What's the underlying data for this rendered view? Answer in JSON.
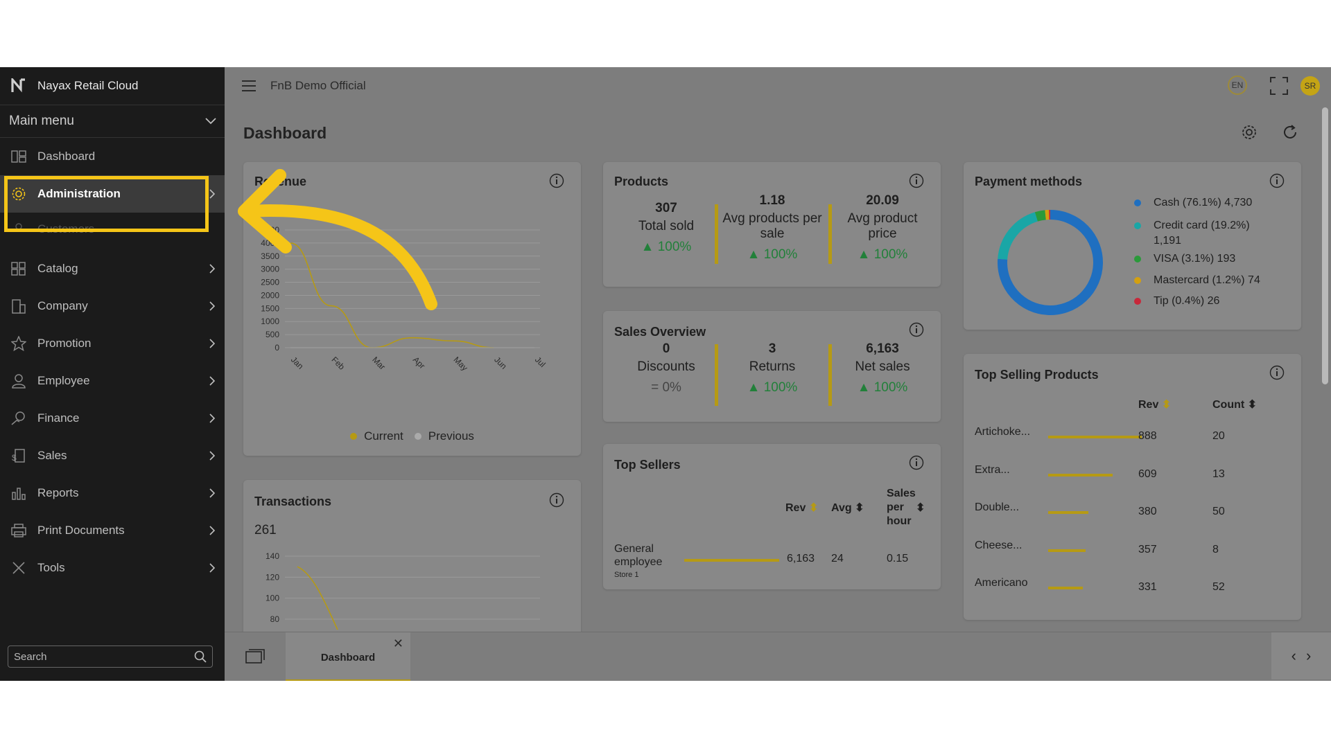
{
  "app": {
    "brand": "Nayax Retail Cloud",
    "store": "FnB Demo Official",
    "lang": "EN",
    "avatar": "SR"
  },
  "sidebar": {
    "main_menu": "Main menu",
    "items": [
      {
        "label": "Dashboard",
        "icon": "dashboard-icon"
      },
      {
        "label": "Administration",
        "icon": "admin-gear-icon"
      },
      {
        "label": "Customers",
        "icon": "customers-icon"
      },
      {
        "label": "Catalog",
        "icon": "catalog-icon"
      },
      {
        "label": "Company",
        "icon": "company-icon"
      },
      {
        "label": "Promotion",
        "icon": "star-icon"
      },
      {
        "label": "Employee",
        "icon": "employee-icon"
      },
      {
        "label": "Finance",
        "icon": "finance-icon"
      },
      {
        "label": "Sales",
        "icon": "sales-icon"
      },
      {
        "label": "Reports",
        "icon": "reports-icon"
      },
      {
        "label": "Print Documents",
        "icon": "printer-icon"
      },
      {
        "label": "Tools",
        "icon": "tools-icon"
      }
    ],
    "search_placeholder": "Search"
  },
  "dashboard": {
    "title": "Dashboard",
    "revenue": {
      "title": "Revenue",
      "legend_current": "Current",
      "legend_previous": "Previous",
      "chart_data": {
        "type": "line",
        "title": "Revenue",
        "categories": [
          "Jan",
          "Feb",
          "Mar",
          "Apr",
          "May",
          "Jun",
          "Jul"
        ],
        "series": [
          {
            "name": "Current",
            "values": [
              4000,
              1600,
              0,
              380,
              260,
              0,
              null
            ]
          },
          {
            "name": "Previous",
            "values": [
              0,
              0,
              0,
              0,
              0,
              0,
              0
            ]
          }
        ],
        "yticks": [
          0,
          500,
          1000,
          1500,
          2000,
          2500,
          3000,
          3500,
          4000,
          4500
        ],
        "ylim": [
          0,
          4500
        ],
        "grid": true,
        "legend": "bottom",
        "colors": {
          "Current": "#b69a14",
          "Previous": "#999999"
        }
      }
    },
    "products": {
      "title": "Products",
      "stats": [
        {
          "value": "307",
          "label": "Total sold",
          "change": "100%"
        },
        {
          "value": "1.18",
          "label": "Avg products per sale",
          "change": "100%"
        },
        {
          "value": "20.09",
          "label": "Avg product price",
          "change": "100%"
        }
      ]
    },
    "payment": {
      "title": "Payment methods",
      "items": [
        {
          "label": "Cash (76.1%) 4,730",
          "color": "#1f6fc0"
        },
        {
          "label": "Credit card (19.2%) 1,191",
          "color": "#1aa6a6"
        },
        {
          "label": "VISA (3.1%) 193",
          "color": "#2a9a3a"
        },
        {
          "label": "Mastercard (1.2%) 74",
          "color": "#d4a010"
        },
        {
          "label": "Tip (0.4%) 26",
          "color": "#c8283a"
        }
      ],
      "chart_data": {
        "type": "pie",
        "categories": [
          "Cash",
          "Credit card",
          "VISA",
          "Mastercard",
          "Tip"
        ],
        "values": [
          76.1,
          19.2,
          3.1,
          1.2,
          0.4
        ],
        "legend": "right"
      }
    },
    "sales_overview": {
      "title": "Sales Overview",
      "stats": [
        {
          "value": "0",
          "label": "Discounts",
          "change": "0%",
          "trend": "flat"
        },
        {
          "value": "3",
          "label": "Returns",
          "change": "100%",
          "trend": "up"
        },
        {
          "value": "6,163",
          "label": "Net sales",
          "change": "100%",
          "trend": "up"
        }
      ]
    },
    "top_sellers": {
      "title": "Top Sellers",
      "headers": {
        "rev": "Rev",
        "avg": "Avg",
        "sales_per_hour_1": "Sales",
        "sales_per_hour_2": "per",
        "sales_per_hour_3": "hour"
      },
      "rows": [
        {
          "name_1": "General",
          "name_2": "employee",
          "store": "Store 1",
          "rev": "6,163",
          "avg": "24",
          "sph": "0.15",
          "bar_fraction": 1.0
        }
      ]
    },
    "transactions": {
      "title": "Transactions",
      "total": "261",
      "chart_data": {
        "type": "line",
        "title": "Transactions",
        "yticks": [
          80,
          100,
          120,
          140
        ],
        "series": [
          {
            "values": [
              130,
              100,
              70
            ]
          }
        ]
      }
    },
    "top_selling": {
      "title": "Top Selling Products",
      "headers": {
        "rev": "Rev",
        "count": "Count"
      },
      "rows": [
        {
          "name": "Artichoke...",
          "rev": "888",
          "count": "20",
          "bar_fraction": 1.0
        },
        {
          "name": "Extra...",
          "rev": "609",
          "count": "13",
          "bar_fraction": 0.686
        },
        {
          "name": "Double...",
          "rev": "380",
          "count": "50",
          "bar_fraction": 0.428
        },
        {
          "name": "Cheese...",
          "rev": "357",
          "count": "8",
          "bar_fraction": 0.402
        },
        {
          "name": "Americano",
          "rev": "331",
          "count": "52",
          "bar_fraction": 0.373
        }
      ]
    }
  },
  "bottom": {
    "tab_label": "Dashboard"
  },
  "colors": {
    "accent": "#b69a14",
    "highlight": "#f5c518",
    "positive": "#22803a"
  }
}
